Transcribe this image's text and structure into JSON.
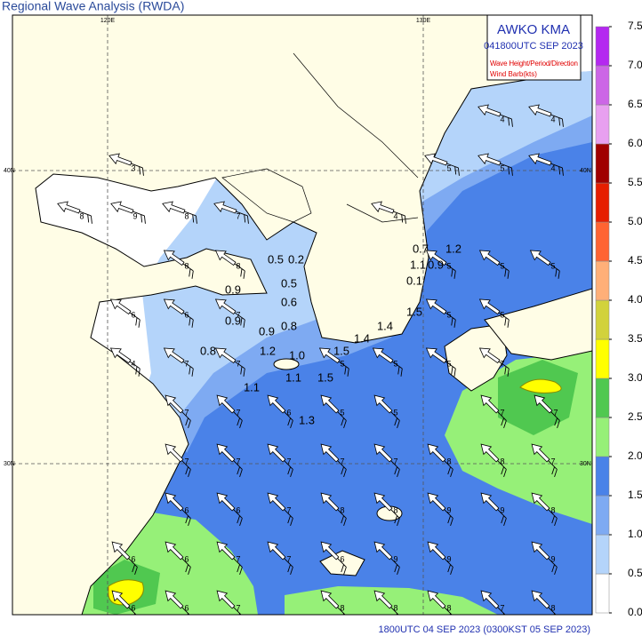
{
  "title": "Regional Wave Analysis (RWDA)",
  "header": {
    "org": "AWKO    KMA",
    "time": "041800UTC SEP 2023",
    "legend": [
      "Wave Height/Period/Direction",
      "Wind Barb(kts)"
    ]
  },
  "footer": "1800UTC 04 SEP 2023 (0300KST 05 SEP 2023)",
  "grid_labels": {
    "lon": [
      "120E",
      "130E"
    ],
    "lat": [
      "40N",
      "30N"
    ]
  },
  "colorbar": {
    "colors": [
      "#ffffff",
      "#b4d4fa",
      "#7eaaf2",
      "#4a82e8",
      "#96f078",
      "#50c850",
      "#ffff00",
      "#d2d23c",
      "#ffaf78",
      "#ff6432",
      "#e61e00",
      "#a00000",
      "#e8a0f0",
      "#cc66e6",
      "#b428f0"
    ],
    "ticks": [
      {
        "value": 0,
        "label": "0.0"
      },
      0.5,
      {
        "value": 1,
        "label": "1.0"
      },
      1.5,
      {
        "value": 2,
        "label": "2.0"
      },
      2.5,
      {
        "value": 3,
        "label": "3.0"
      },
      3.5,
      {
        "value": 4,
        "label": "4.0"
      },
      4.5,
      {
        "value": 5,
        "label": "5.0"
      },
      5.5,
      {
        "value": 6,
        "label": "6.0"
      },
      6.5,
      {
        "value": 7,
        "label": "7.0"
      },
      7.5
    ]
  },
  "obs_labels": [
    "0.5",
    "0.2",
    "0.9",
    "0.5",
    "0.6",
    "0.9",
    "0.9",
    "0.8",
    "0.8",
    "1.2",
    "1.0",
    "1.5",
    "1.4",
    "1.4",
    "1.1",
    "1.5",
    "1.1",
    "1.3",
    "0.7",
    "1.2",
    "1.1",
    "0.9",
    "0.1",
    "1.5"
  ],
  "wave_periods": [
    3,
    8,
    9,
    8,
    7,
    4,
    5,
    5,
    4,
    4,
    4,
    8,
    8,
    5,
    5,
    5,
    6,
    6,
    7,
    5,
    5,
    4,
    7,
    7,
    5,
    5,
    5,
    7,
    7,
    7,
    6,
    5,
    5,
    7,
    7,
    7,
    7,
    7,
    7,
    7,
    8,
    8,
    7,
    6,
    6,
    7,
    8,
    8,
    9,
    9,
    8,
    6,
    6,
    7,
    7,
    6,
    9,
    9,
    9,
    6,
    6,
    7,
    8,
    8,
    8,
    7,
    8
  ]
}
